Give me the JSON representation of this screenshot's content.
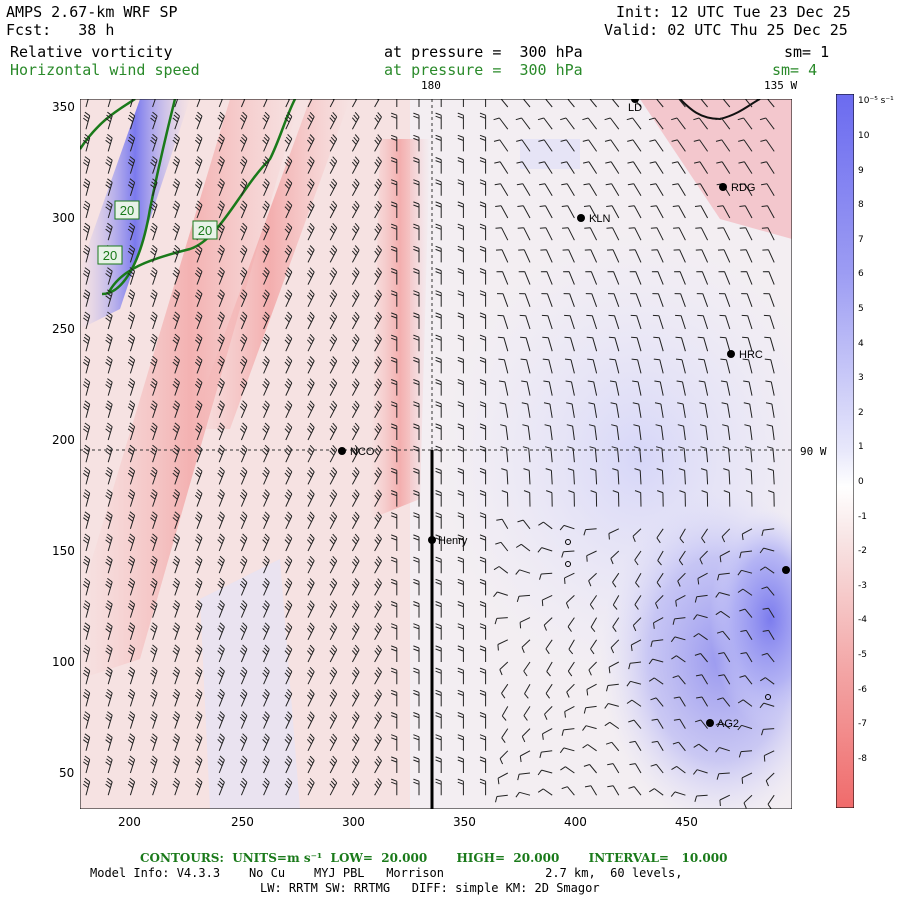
{
  "header": {
    "model": "AMPS 2.67-km WRF SP",
    "fcst": "Fcst:   38 h",
    "init": "Init: 12 UTC Tue 23 Dec 25",
    "valid": "Valid: 02 UTC Thu 25 Dec 25",
    "field1": "Relative vorticity",
    "field1_level": "at pressure =  300 hPa",
    "field1_sm": "sm= 1",
    "field2": "Horizontal wind speed",
    "field2_level": "at pressure =  300 hPa",
    "field2_sm": "sm= 4",
    "lon180": "180",
    "lon135w": "135 W",
    "lat90s": "90 W"
  },
  "axes": {
    "x_ticks": [
      "200",
      "250",
      "300",
      "350",
      "400",
      "450"
    ],
    "y_ticks": [
      "350",
      "300",
      "250",
      "200",
      "150",
      "100",
      "50"
    ]
  },
  "colorbar": {
    "unit": "10⁻⁵ s⁻¹",
    "labels": [
      "10",
      "9",
      "8",
      "7",
      "6",
      "5",
      "4",
      "3",
      "2",
      "1",
      "0",
      "-1",
      "-2",
      "-3",
      "-4",
      "-5",
      "-6",
      "-7",
      "-8"
    ],
    "colors": {
      "pos_max": "#6b6bf0",
      "neg_max": "#f06b6b",
      "zero": "#ffffff"
    }
  },
  "contours": {
    "label_a": "20",
    "label_b": "20",
    "label_c": "20",
    "color": "#1a7a1a"
  },
  "stations": [
    "LD",
    "RDG",
    "KLN",
    "HRC",
    "NCO",
    "Henry",
    "AG2"
  ],
  "footer": {
    "contours_line": "CONTOURS:  UNITS=m s⁻¹  LOW=  20.000       HIGH=  20.000       INTERVAL=   10.000",
    "model_info": "Model Info: V4.3.3    No Cu    MYJ PBL   Morrison              2.7 km,  60 levels,",
    "physics": "LW: RRTM SW: RRTMG   DIFF: simple KM: 2D Smagor"
  }
}
